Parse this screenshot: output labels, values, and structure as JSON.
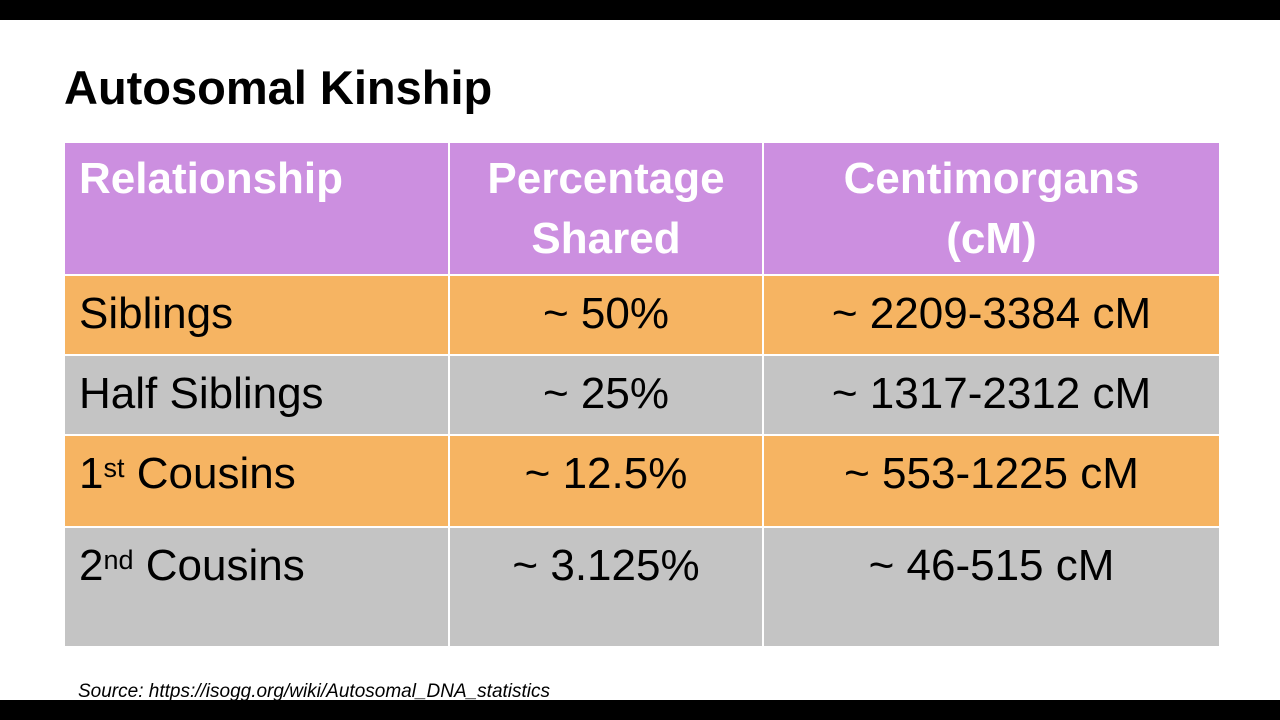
{
  "slide": {
    "title": "Autosomal Kinship",
    "source": "Source: https://isogg.org/wiki/Autosomal_DNA_statistics"
  },
  "colors": {
    "header_bg": "#cc8fe0",
    "orange_row": "#f6b462",
    "gray_row": "#c4c4c4"
  },
  "table": {
    "headers": {
      "relationship": "Relationship",
      "percentage_line1": "Percentage",
      "percentage_line2": "Shared",
      "centimorgans_line1": "Centimorgans",
      "centimorgans_line2": "(cM)"
    },
    "rows": [
      {
        "relationship": "Siblings",
        "percentage": "~ 50%",
        "centimorgans": "~ 2209-3384 cM"
      },
      {
        "relationship": "Half Siblings",
        "percentage": "~ 25%",
        "centimorgans": "~ 1317-2312 cM"
      },
      {
        "relationship_num": "1",
        "relationship_sup": "st",
        "relationship_rest": " Cousins",
        "percentage": "~ 12.5%",
        "centimorgans": "~ 553-1225 cM"
      },
      {
        "relationship_num": "2",
        "relationship_sup": "nd",
        "relationship_rest": " Cousins",
        "percentage": "~ 3.125%",
        "centimorgans": "~ 46-515 cM"
      }
    ]
  }
}
